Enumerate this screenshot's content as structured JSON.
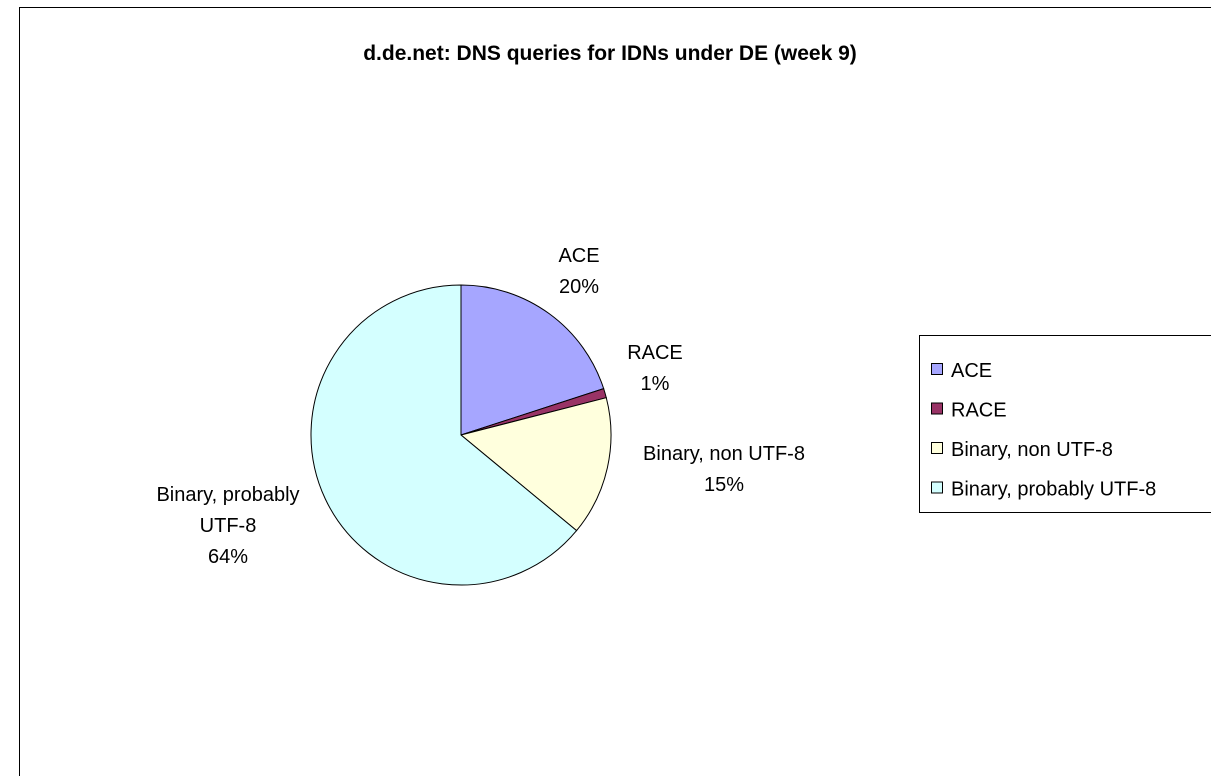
{
  "chart_data": {
    "type": "pie",
    "title": "d.de.net: DNS queries for IDNs under DE (week 9)",
    "categories": [
      "ACE",
      "RACE",
      "Binary, non UTF-8",
      "Binary, probably UTF-8"
    ],
    "values": [
      20,
      1,
      15,
      64
    ],
    "value_labels": [
      "20%",
      "1%",
      "15%",
      "64%"
    ],
    "colors": [
      "#a6a6ff",
      "#993366",
      "#ffffdd",
      "#d4ffff"
    ],
    "legend": "right"
  }
}
